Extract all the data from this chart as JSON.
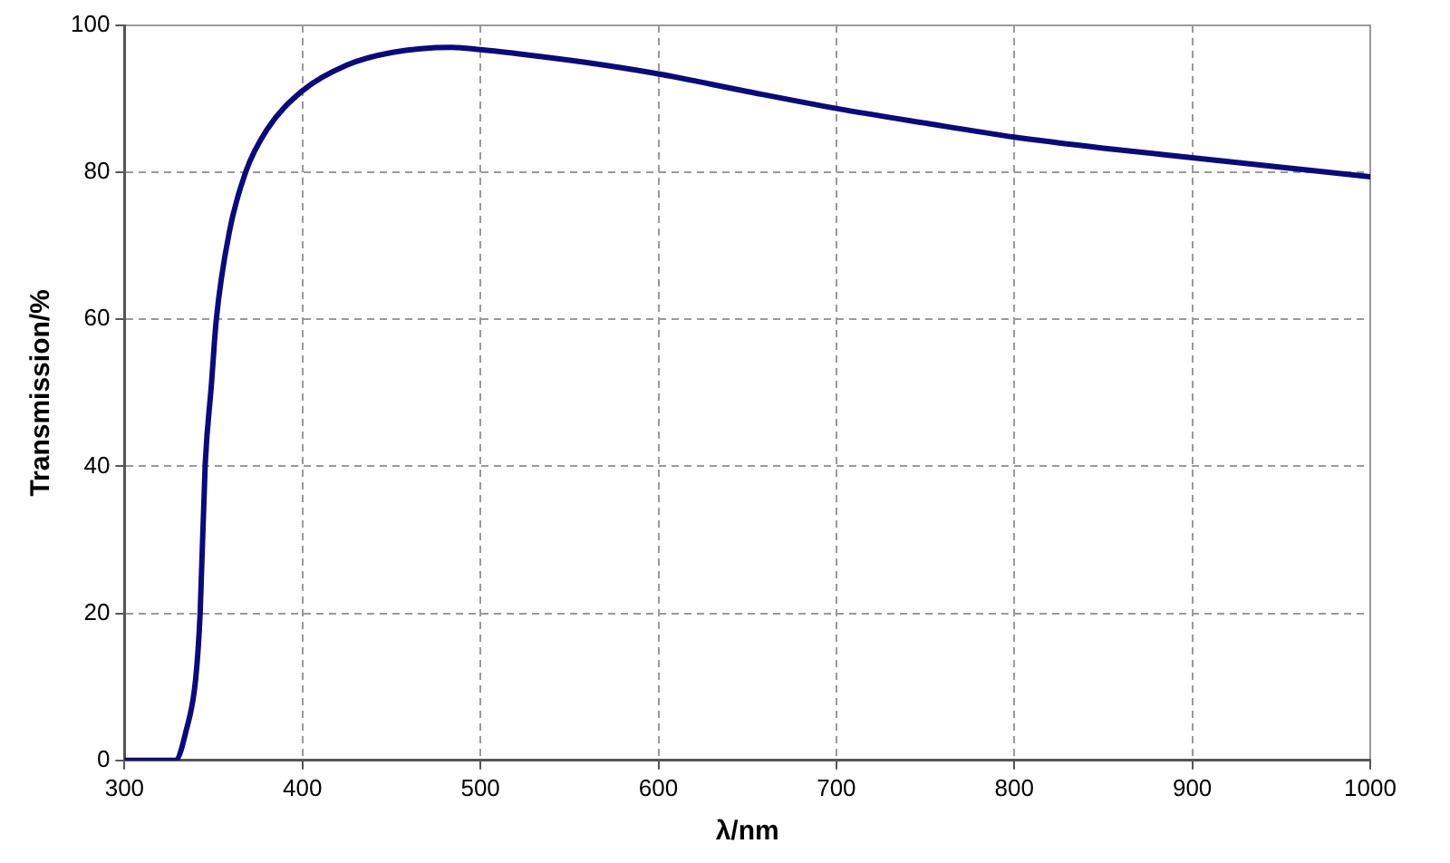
{
  "chart_data": {
    "type": "line",
    "xlabel": "λ/nm",
    "ylabel": "Transmission/%",
    "series": [
      {
        "color": "#0a0a78",
        "x": [
          300,
          319,
          328.6,
          334.8,
          340,
          342.5,
          345.3,
          348.8,
          351.6,
          359,
          368,
          380,
          400,
          425,
          450,
          484,
          500,
          526,
          558,
          600,
          650,
          700,
          750,
          800,
          850,
          900,
          950,
          1000
        ],
        "values": [
          0,
          0,
          0,
          4.2,
          11.1,
          20,
          40,
          51,
          60,
          72,
          80,
          85.8,
          91.1,
          94.6,
          96.3,
          97,
          96.7,
          96,
          95,
          93.4,
          91,
          88.7,
          86.7,
          84.8,
          83.3,
          82,
          80.7,
          79.4
        ]
      }
    ],
    "xlim": [
      300,
      1000
    ],
    "xticks": [
      300,
      400,
      500,
      600,
      700,
      800,
      900,
      1000
    ],
    "ylim": [
      0,
      100
    ],
    "yticks": [
      0,
      20,
      40,
      60,
      80,
      100
    ],
    "grid": true,
    "legend": false,
    "marker": "none",
    "line_style": "solid"
  }
}
